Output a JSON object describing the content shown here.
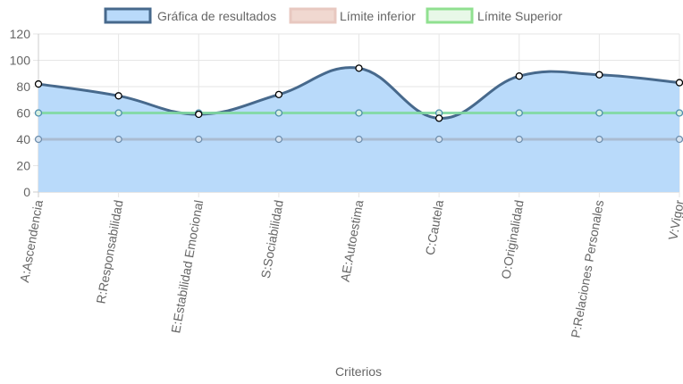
{
  "chart_data": {
    "type": "line",
    "xlabel": "Criterios",
    "ylim": [
      0,
      120
    ],
    "yticks": [
      0,
      20,
      40,
      60,
      80,
      100,
      120
    ],
    "grid": true,
    "legend_position": "top",
    "categories": [
      "A:Ascendencia",
      "R:Responsabilidad",
      "E:Estabilidad Emocional",
      "S:Sociabilidad",
      "AE:Autoestima",
      "C:Cautela",
      "O:Originalidad",
      "P:Relaciones Personales",
      "V:Vigor"
    ],
    "series": [
      {
        "name": "Gráfica de resultados",
        "values": [
          82,
          73,
          59,
          74,
          94,
          56,
          88,
          89,
          83
        ],
        "border_color": "#47698c",
        "fill_color": "#b9dafa",
        "filled": true
      },
      {
        "name": "Límite inferior",
        "values": [
          40,
          40,
          40,
          40,
          40,
          40,
          40,
          40,
          40
        ],
        "border_color": "#a8b8cc",
        "fill_color": "#f0d8d0",
        "legend_border_color": "#e8c8c0",
        "filled": false
      },
      {
        "name": "Límite Superior",
        "values": [
          60,
          60,
          60,
          60,
          60,
          60,
          60,
          60,
          60
        ],
        "border_color": "#7fd8a0",
        "fill_color": "#e8f8e8",
        "legend_border_color": "#90e090",
        "filled": false
      }
    ]
  }
}
